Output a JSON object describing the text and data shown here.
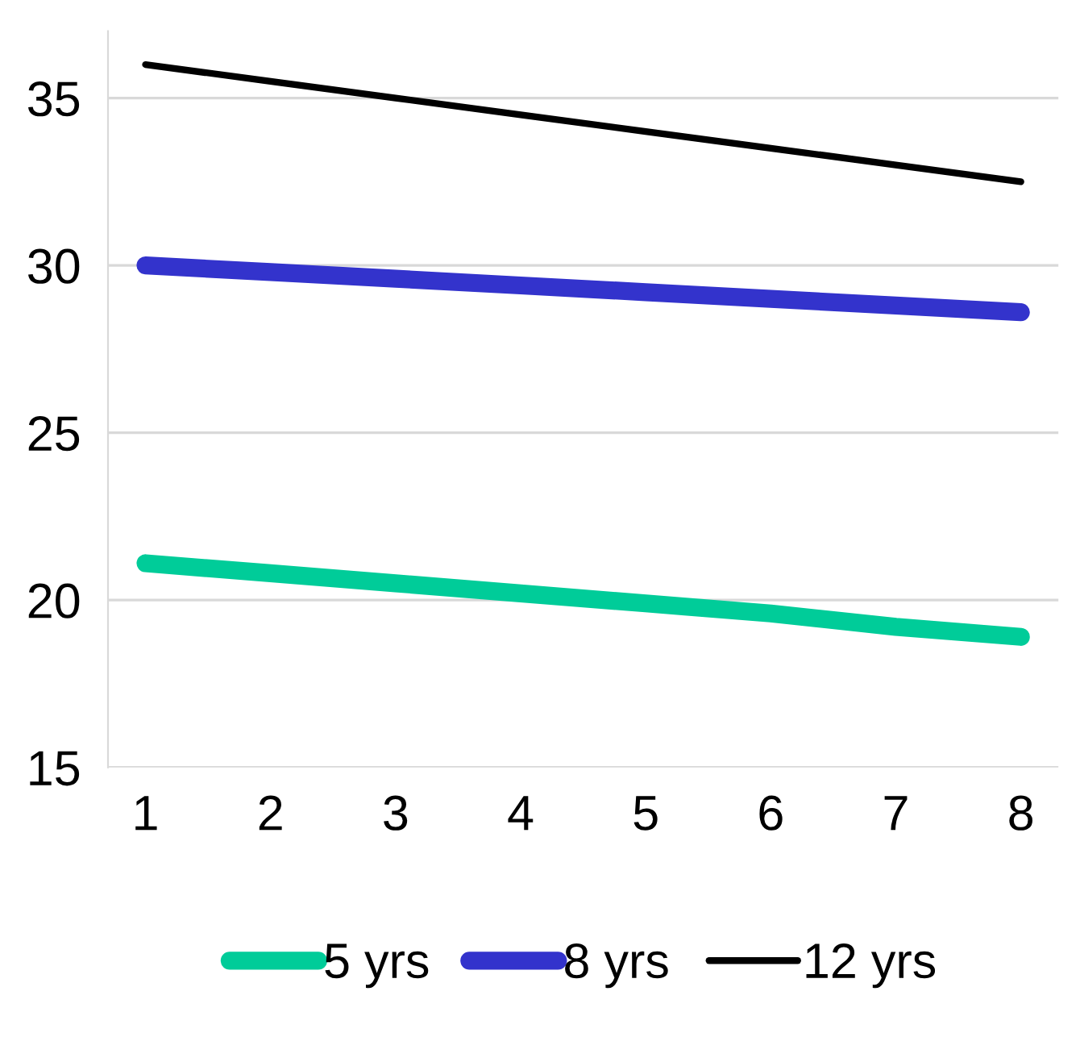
{
  "chart_data": {
    "type": "line",
    "categories": [
      "1",
      "2",
      "3",
      "4",
      "5",
      "6",
      "7",
      "8"
    ],
    "series": [
      {
        "name": "5 yrs",
        "color": "#00cc99",
        "values": [
          21.1,
          20.8,
          20.5,
          20.2,
          19.9,
          19.6,
          19.2,
          18.9
        ]
      },
      {
        "name": "8 yrs",
        "color": "#3333cc",
        "values": [
          30.0,
          29.8,
          29.6,
          29.4,
          29.2,
          29.0,
          28.8,
          28.6
        ]
      },
      {
        "name": "12 yrs",
        "color": "#000000",
        "values": [
          36.0,
          35.5,
          35.0,
          34.5,
          34.0,
          33.5,
          33.0,
          32.5
        ]
      }
    ],
    "ylim": [
      15,
      37
    ],
    "yticks": [
      15,
      20,
      25,
      30,
      35
    ],
    "grid": "y",
    "legend": "bottom",
    "marker": "none",
    "line_style": "solid"
  }
}
